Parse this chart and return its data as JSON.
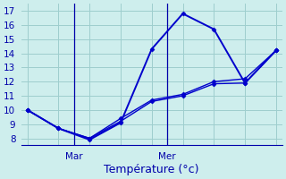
{
  "line1": {
    "x": [
      0,
      1,
      2,
      3,
      4,
      5,
      6,
      7,
      8
    ],
    "y": [
      10.0,
      8.7,
      7.9,
      9.1,
      14.3,
      16.8,
      15.7,
      11.9,
      14.2
    ],
    "color": "#0000cc",
    "lw": 1.4,
    "marker": "D",
    "ms": 2.5
  },
  "line2": {
    "x": [
      0,
      1,
      2,
      3,
      4,
      5,
      6,
      7,
      8
    ],
    "y": [
      10.0,
      8.7,
      8.0,
      9.2,
      10.6,
      11.0,
      11.85,
      11.9,
      14.2
    ],
    "color": "#0000cc",
    "lw": 1.0,
    "marker": "D",
    "ms": 2.5
  },
  "line3": {
    "x": [
      0,
      1,
      2,
      3,
      4,
      5,
      6,
      7,
      8
    ],
    "y": [
      10.0,
      8.7,
      8.0,
      9.4,
      10.7,
      11.1,
      12.0,
      12.2,
      14.2
    ],
    "color": "#0000cc",
    "lw": 1.0,
    "marker": "D",
    "ms": 2.5
  },
  "ylim": [
    7.5,
    17.5
  ],
  "xlim": [
    -0.2,
    8.2
  ],
  "yticks": [
    8,
    9,
    10,
    11,
    12,
    13,
    14,
    15,
    16,
    17
  ],
  "day_separators": [
    1.5,
    4.5
  ],
  "xtick_labels_pos": [
    1.5,
    4.5
  ],
  "xtick_labels": [
    "Mar",
    "Mer"
  ],
  "xlabel": "Température (°c)",
  "bg_color": "#ceeeed",
  "line_color": "#0000cc",
  "axis_color": "#0000aa",
  "grid_color": "#9ecece",
  "grid_cols": 8,
  "xlabel_fontsize": 9,
  "tick_fontsize": 7.5
}
